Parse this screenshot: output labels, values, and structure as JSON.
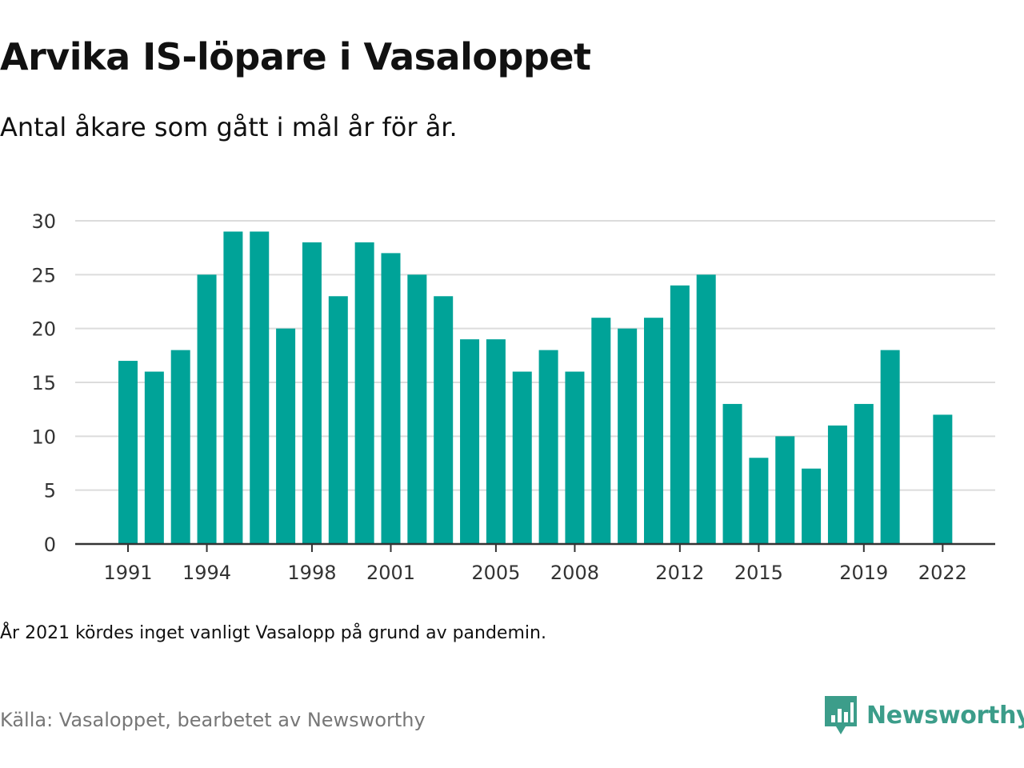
{
  "title": "Arvika IS-löpare i Vasaloppet",
  "subtitle": "Antal åkare som gått i mål år för år.",
  "note": "År 2021 kördes inget vanligt Vasalopp på grund av pandemin.",
  "source": "Källa: Vasaloppet, bearbetet av Newsworthy",
  "brand": {
    "name": "Newsworthy",
    "color": "#3c9d8a",
    "icon": "newsworthy-logo-icon"
  },
  "colors": {
    "bar": "#00a398",
    "grid": "#dcdcdc",
    "axis": "#333333",
    "text": "#333333"
  },
  "chart_data": {
    "type": "bar",
    "title": "Arvika IS-löpare i Vasaloppet",
    "subtitle": "Antal åkare som gått i mål år för år.",
    "xlabel": "",
    "ylabel": "",
    "ylim": [
      0,
      30
    ],
    "yticks": [
      0,
      5,
      10,
      15,
      20,
      25,
      30
    ],
    "grid": true,
    "legend": "none",
    "categories": [
      1991,
      1992,
      1993,
      1994,
      1995,
      1996,
      1997,
      1998,
      1999,
      2000,
      2001,
      2002,
      2003,
      2004,
      2005,
      2006,
      2007,
      2008,
      2009,
      2010,
      2011,
      2012,
      2013,
      2014,
      2015,
      2016,
      2017,
      2018,
      2019,
      2020,
      2021,
      2022
    ],
    "values": [
      17,
      16,
      18,
      25,
      29,
      29,
      20,
      28,
      23,
      28,
      27,
      25,
      23,
      19,
      19,
      16,
      18,
      16,
      21,
      20,
      21,
      24,
      25,
      13,
      8,
      10,
      7,
      11,
      13,
      18,
      null,
      12
    ],
    "xtick_labels": [
      1991,
      1994,
      1998,
      2001,
      2005,
      2008,
      2012,
      2015,
      2019,
      2022
    ]
  }
}
